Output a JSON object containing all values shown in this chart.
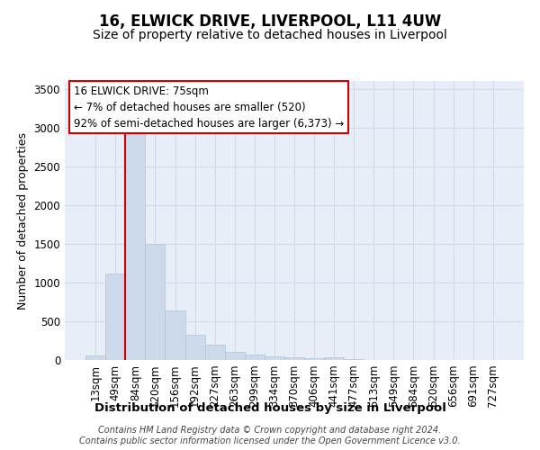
{
  "title": "16, ELWICK DRIVE, LIVERPOOL, L11 4UW",
  "subtitle": "Size of property relative to detached houses in Liverpool",
  "xlabel": "Distribution of detached houses by size in Liverpool",
  "ylabel": "Number of detached properties",
  "categories": [
    "13sqm",
    "49sqm",
    "84sqm",
    "120sqm",
    "156sqm",
    "192sqm",
    "227sqm",
    "263sqm",
    "299sqm",
    "334sqm",
    "370sqm",
    "406sqm",
    "441sqm",
    "477sqm",
    "513sqm",
    "549sqm",
    "584sqm",
    "620sqm",
    "656sqm",
    "691sqm",
    "727sqm"
  ],
  "values": [
    55,
    1110,
    2910,
    1500,
    640,
    330,
    200,
    100,
    75,
    50,
    35,
    20,
    30,
    8,
    5,
    0,
    0,
    0,
    0,
    0,
    0
  ],
  "bar_color": "#ccd9ea",
  "bar_edge_color": "#b0c4d8",
  "grid_color": "#d0dae8",
  "background_color": "#e8eef7",
  "vline_x": 1.5,
  "vline_color": "#cc0000",
  "annotation_text": "16 ELWICK DRIVE: 75sqm\n← 7% of detached houses are smaller (520)\n92% of semi-detached houses are larger (6,373) →",
  "annotation_box_facecolor": "#ffffff",
  "annotation_border_color": "#cc0000",
  "ylim": [
    0,
    3600
  ],
  "yticks": [
    0,
    500,
    1000,
    1500,
    2000,
    2500,
    3000,
    3500
  ],
  "footer_text": "Contains HM Land Registry data © Crown copyright and database right 2024.\nContains public sector information licensed under the Open Government Licence v3.0.",
  "title_fontsize": 12,
  "subtitle_fontsize": 10,
  "xlabel_fontsize": 9.5,
  "ylabel_fontsize": 9,
  "tick_fontsize": 8.5,
  "footer_fontsize": 7
}
